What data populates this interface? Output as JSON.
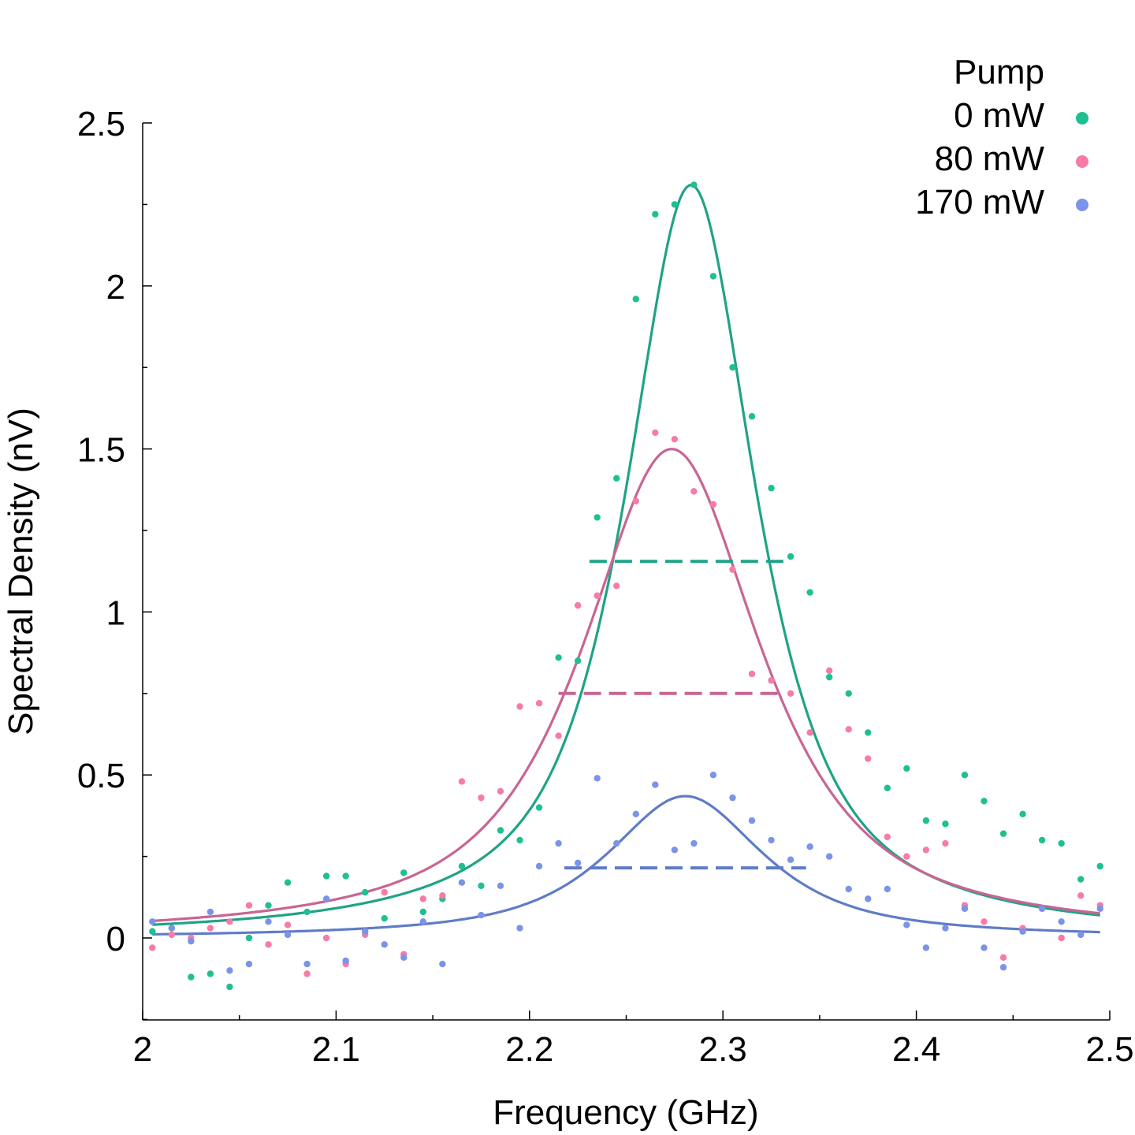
{
  "chart_data": {
    "type": "scatter",
    "title": "",
    "xlabel": "Frequency (GHz)",
    "ylabel": "Spectral Density (nV)",
    "xlim": [
      2.0,
      2.5
    ],
    "ylim": [
      -0.25,
      2.5
    ],
    "x_ticks": [
      2.0,
      2.1,
      2.2,
      2.3,
      2.4,
      2.5
    ],
    "x_tick_labels": [
      "2",
      "2.1",
      "2.2",
      "2.3",
      "2.4",
      "2.5"
    ],
    "y_ticks": [
      0,
      0.5,
      1,
      1.5,
      2,
      2.5
    ],
    "y_tick_labels": [
      "0",
      "0.5",
      "1",
      "1.5",
      "2",
      "2.5"
    ],
    "grid": false,
    "legend": {
      "title": "Pump",
      "position": "top-right"
    },
    "series": [
      {
        "name": "0 mW",
        "color": "#1fa386",
        "point_color": "#1fbf92",
        "fit": {
          "center": 2.2835,
          "peak": 2.31,
          "hwhm": 0.0405,
          "shape": "lorentzian-gaussian"
        },
        "half_max": {
          "x_start": 2.231,
          "x_end": 2.334,
          "y": 1.155
        },
        "x": [
          2.005,
          2.015,
          2.025,
          2.035,
          2.045,
          2.055,
          2.065,
          2.075,
          2.085,
          2.095,
          2.105,
          2.115,
          2.125,
          2.135,
          2.145,
          2.155,
          2.165,
          2.175,
          2.185,
          2.195,
          2.205,
          2.215,
          2.225,
          2.235,
          2.245,
          2.255,
          2.265,
          2.275,
          2.285,
          2.295,
          2.305,
          2.315,
          2.325,
          2.335,
          2.345,
          2.355,
          2.365,
          2.375,
          2.385,
          2.395,
          2.405,
          2.415,
          2.425,
          2.435,
          2.445,
          2.455,
          2.465,
          2.475,
          2.485,
          2.495
        ],
        "y": [
          0.02,
          0.03,
          -0.12,
          -0.11,
          -0.15,
          0.0,
          0.1,
          0.17,
          0.08,
          0.19,
          0.19,
          0.14,
          0.06,
          0.2,
          0.08,
          0.12,
          0.22,
          0.16,
          0.33,
          0.3,
          0.4,
          0.86,
          0.85,
          1.29,
          1.41,
          1.96,
          2.22,
          2.25,
          2.31,
          2.03,
          1.75,
          1.6,
          1.38,
          1.17,
          1.06,
          0.8,
          0.75,
          0.63,
          0.46,
          0.52,
          0.36,
          0.35,
          0.5,
          0.42,
          0.32,
          0.38,
          0.3,
          0.29,
          0.18,
          0.22
        ]
      },
      {
        "name": "80 mW",
        "color": "#c86593",
        "point_color": "#f77ba8",
        "fit": {
          "center": 2.2735,
          "peak": 1.5,
          "hwhm": 0.0555,
          "shape": "lorentzian-gaussian"
        },
        "half_max": {
          "x_start": 2.215,
          "x_end": 2.332,
          "y": 0.75
        },
        "x": [
          2.005,
          2.015,
          2.025,
          2.035,
          2.045,
          2.055,
          2.065,
          2.075,
          2.085,
          2.095,
          2.105,
          2.115,
          2.125,
          2.135,
          2.145,
          2.155,
          2.165,
          2.175,
          2.185,
          2.195,
          2.205,
          2.215,
          2.225,
          2.235,
          2.245,
          2.255,
          2.265,
          2.275,
          2.285,
          2.295,
          2.305,
          2.315,
          2.325,
          2.335,
          2.345,
          2.355,
          2.365,
          2.375,
          2.385,
          2.395,
          2.405,
          2.415,
          2.425,
          2.435,
          2.445,
          2.455,
          2.465,
          2.475,
          2.485,
          2.495
        ],
        "y": [
          -0.03,
          0.01,
          0.0,
          0.03,
          0.05,
          0.1,
          -0.02,
          0.04,
          -0.11,
          0.0,
          -0.08,
          0.01,
          0.14,
          -0.05,
          0.12,
          0.13,
          0.48,
          0.43,
          0.45,
          0.71,
          0.72,
          0.62,
          1.02,
          1.05,
          1.08,
          1.34,
          1.55,
          1.53,
          1.37,
          1.33,
          1.13,
          0.81,
          0.79,
          0.75,
          0.63,
          0.82,
          0.64,
          0.55,
          0.31,
          0.25,
          0.27,
          0.29,
          0.1,
          0.05,
          -0.06,
          0.03,
          0.09,
          0.0,
          0.13,
          0.1
        ]
      },
      {
        "name": "170 mW",
        "color": "#5f7cc7",
        "point_color": "#7b93e8",
        "fit": {
          "center": 2.2805,
          "peak": 0.435,
          "hwhm": 0.0485,
          "shape": "lorentzian-gaussian"
        },
        "half_max": {
          "x_start": 2.218,
          "x_end": 2.343,
          "y": 0.215
        },
        "x": [
          2.005,
          2.015,
          2.025,
          2.035,
          2.045,
          2.055,
          2.065,
          2.075,
          2.085,
          2.095,
          2.105,
          2.115,
          2.125,
          2.135,
          2.145,
          2.155,
          2.165,
          2.175,
          2.185,
          2.195,
          2.205,
          2.215,
          2.225,
          2.235,
          2.245,
          2.255,
          2.265,
          2.275,
          2.285,
          2.295,
          2.305,
          2.315,
          2.325,
          2.335,
          2.345,
          2.355,
          2.365,
          2.375,
          2.385,
          2.395,
          2.405,
          2.415,
          2.425,
          2.435,
          2.445,
          2.455,
          2.465,
          2.475,
          2.485,
          2.495
        ],
        "y": [
          0.05,
          0.03,
          -0.01,
          0.08,
          -0.1,
          -0.08,
          0.05,
          0.01,
          -0.08,
          0.12,
          -0.07,
          0.02,
          -0.02,
          -0.06,
          0.05,
          -0.08,
          0.17,
          0.07,
          0.16,
          0.03,
          0.22,
          0.29,
          0.23,
          0.49,
          0.29,
          0.38,
          0.47,
          0.27,
          0.29,
          0.5,
          0.43,
          0.36,
          0.3,
          0.24,
          0.28,
          0.25,
          0.15,
          0.12,
          0.15,
          0.04,
          -0.03,
          0.03,
          0.09,
          -0.03,
          -0.09,
          0.02,
          0.09,
          0.05,
          0.01,
          0.09
        ]
      }
    ]
  }
}
